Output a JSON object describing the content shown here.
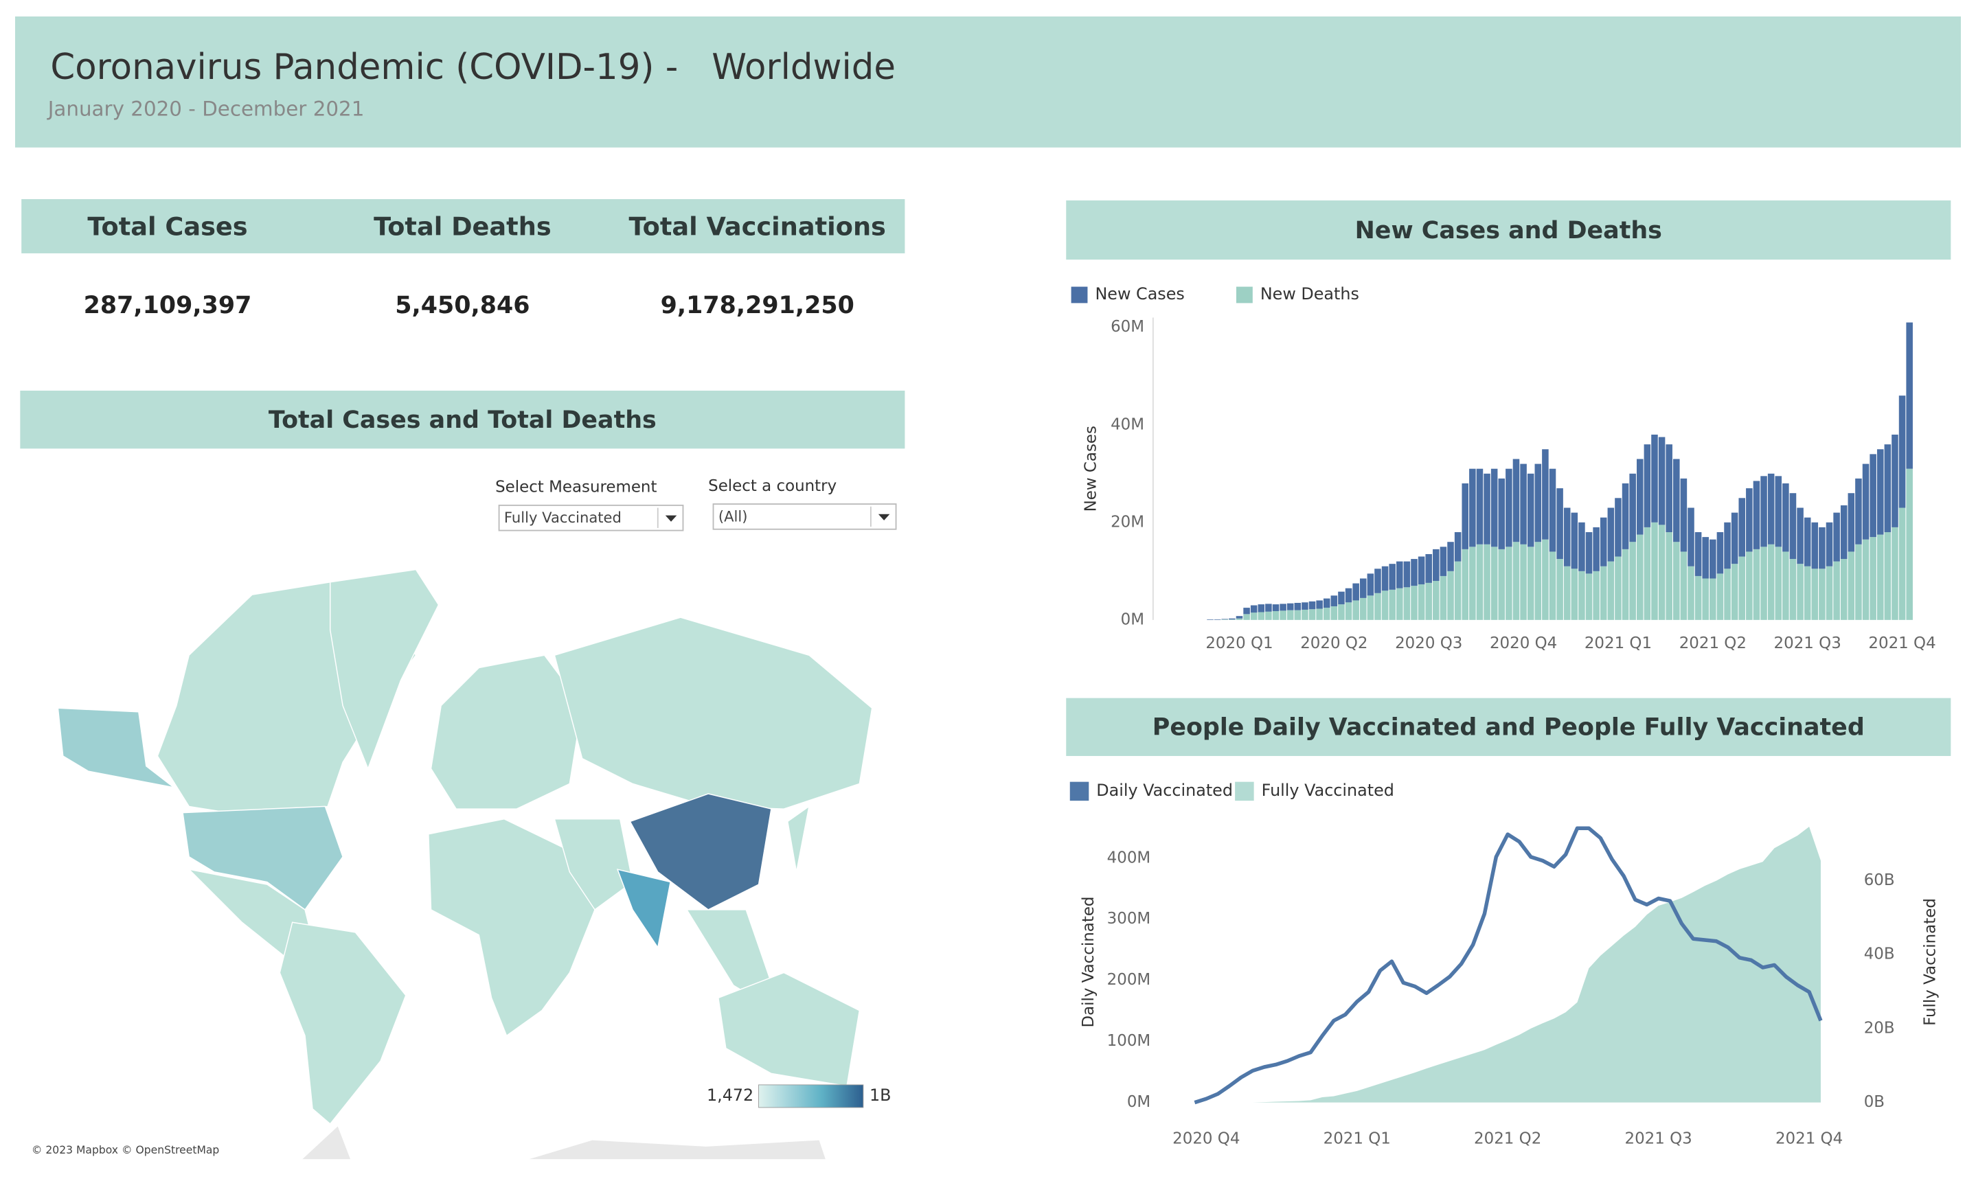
{
  "header": {
    "title": "Coronavirus Pandemic (COVID-19) -   Worldwide",
    "subtitle": "January 2020 - December 2021"
  },
  "kpis": [
    {
      "label": "Total Cases",
      "value": "287,109,397"
    },
    {
      "label": "Total Deaths",
      "value": "5,450,846"
    },
    {
      "label": "Total Vaccinations",
      "value": "9,178,291,250"
    }
  ],
  "map": {
    "title": "Total Cases and Total Deaths",
    "measurement_label": "Select Measurement",
    "measurement_value": "Fully Vaccinated",
    "country_label": "Select a country",
    "country_value": "(All)",
    "legend_min": "1,472",
    "legend_max": "1B",
    "attribution": "© 2023 Mapbox © OpenStreetMap"
  },
  "chart_data": [
    {
      "type": "stacked_bar",
      "title": "New Cases and Deaths",
      "y_label": "New Cases",
      "categories": [
        null,
        null,
        null,
        null,
        null,
        null,
        null,
        "2020 Q1",
        null,
        null,
        null,
        null,
        null,
        null,
        null,
        null,
        null,
        null,
        null,
        null,
        "2020 Q2",
        null,
        null,
        null,
        null,
        null,
        null,
        null,
        null,
        null,
        null,
        null,
        null,
        "2020 Q3",
        null,
        null,
        null,
        null,
        null,
        null,
        null,
        null,
        null,
        null,
        null,
        null,
        "2020 Q4",
        null,
        null,
        null,
        null,
        null,
        null,
        null,
        null,
        null,
        null,
        null,
        null,
        "2021 Q1",
        null,
        null,
        null,
        null,
        null,
        null,
        null,
        null,
        null,
        null,
        null,
        null,
        "2021 Q2",
        null,
        null,
        null,
        null,
        null,
        null,
        null,
        null,
        null,
        null,
        null,
        null,
        "2021 Q3",
        null,
        null,
        null,
        null,
        null,
        null,
        null,
        null,
        null,
        null,
        null,
        null,
        "2021 Q4",
        null
      ],
      "series": [
        {
          "name": "New Cases",
          "color": "#4a6fa5",
          "values": [
            0,
            0,
            0,
            0.1,
            0.1,
            0.1,
            0.2,
            0.5,
            1.3,
            1.5,
            1.6,
            1.6,
            1.4,
            1.4,
            1.4,
            1.5,
            1.5,
            1.6,
            1.7,
            1.9,
            2.2,
            2.6,
            2.9,
            3.5,
            4,
            4.5,
            5,
            5,
            5.3,
            5.5,
            5.3,
            5.5,
            5.7,
            5.9,
            6.5,
            6,
            6,
            6,
            13.5,
            16,
            15.5,
            14.5,
            16,
            14.5,
            16,
            17,
            16.5,
            15,
            16,
            18.5,
            17,
            14.5,
            12,
            11.5,
            10,
            8.5,
            9,
            10,
            11,
            12,
            13.5,
            14,
            15.5,
            17,
            18,
            18,
            18,
            17,
            15,
            12,
            9,
            8.5,
            8,
            8.5,
            9.5,
            10.5,
            12,
            13,
            14,
            14.5,
            14.5,
            14.5,
            14,
            13.5,
            11.5,
            10,
            9.5,
            8.5,
            9,
            10,
            11,
            12,
            13.5,
            15.5,
            17,
            17.5,
            18,
            19,
            23,
            30
          ]
        },
        {
          "name": "New Deaths",
          "color": "#9dd0c4",
          "values": [
            0,
            0,
            0,
            0,
            0,
            0.1,
            0.1,
            0.3,
            1.2,
            1.5,
            1.6,
            1.7,
            1.8,
            1.9,
            2,
            2,
            2.1,
            2.2,
            2.3,
            2.5,
            2.8,
            3.2,
            3.6,
            4,
            4.5,
            5,
            5.5,
            6,
            6.2,
            6.5,
            6.7,
            7,
            7.3,
            7.6,
            8,
            9,
            10,
            12,
            14.5,
            15,
            15.5,
            15.5,
            15,
            14.5,
            15,
            16,
            15.5,
            15,
            16,
            16.5,
            14,
            12.5,
            11,
            10.5,
            10,
            9.5,
            10,
            11,
            12,
            13,
            14.5,
            16,
            17.5,
            19,
            20,
            19.5,
            18,
            16,
            14,
            11,
            9,
            8.5,
            8.5,
            9.5,
            10.5,
            11.5,
            13,
            14,
            14.5,
            15,
            15.5,
            15,
            14,
            12.5,
            11.5,
            11,
            10.5,
            10.5,
            11,
            12,
            12.5,
            14,
            15.5,
            16.5,
            17,
            17.5,
            18,
            19,
            23,
            31
          ]
        }
      ],
      "ylim": [
        0,
        62
      ],
      "yticks": [
        {
          "value": 0,
          "label": "0M"
        },
        {
          "value": 20,
          "label": "20M"
        },
        {
          "value": 40,
          "label": "40M"
        },
        {
          "value": 60,
          "label": "60M"
        }
      ],
      "grid": false
    },
    {
      "type": "line_area",
      "title": "People Daily Vaccinated and People Fully Vaccinated",
      "y_label": "Daily Vaccinated",
      "y2_label": "Fully Vaccinated",
      "categories": [
        null,
        "2020 Q4",
        null,
        null,
        null,
        null,
        null,
        null,
        null,
        null,
        null,
        null,
        null,
        null,
        "2021 Q1",
        null,
        null,
        null,
        null,
        null,
        null,
        null,
        null,
        null,
        null,
        null,
        null,
        "2021 Q2",
        null,
        null,
        null,
        null,
        null,
        null,
        null,
        null,
        null,
        null,
        null,
        null,
        "2021 Q3",
        null,
        null,
        null,
        null,
        null,
        null,
        null,
        null,
        null,
        null,
        null,
        null,
        "2021 Q4",
        null
      ],
      "series": [
        {
          "name": "Daily Vaccinated",
          "color": "#4f77a8",
          "type": "line",
          "values": [
            0,
            6,
            14,
            27,
            41,
            52,
            58,
            62,
            68,
            76,
            82,
            109,
            134,
            144,
            165,
            181,
            216,
            231,
            196,
            190,
            179,
            192,
            206,
            227,
            258,
            309,
            402,
            439,
            427,
            402,
            396,
            386,
            406,
            449,
            449,
            433,
            398,
            371,
            332,
            324,
            334,
            330,
            293,
            268,
            266,
            264,
            254,
            237,
            233,
            221,
            225,
            206,
            192,
            181,
            134
          ]
        },
        {
          "name": "Fully Vaccinated",
          "color": "#b3dbd3",
          "type": "area",
          "axis": "y2",
          "values": [
            0,
            0,
            0,
            0,
            0,
            0,
            0.1,
            0.2,
            0.3,
            0.4,
            0.6,
            1.4,
            1.7,
            2.4,
            3.1,
            4.1,
            5.1,
            6.1,
            7.1,
            8.1,
            9.2,
            10.2,
            11.2,
            12.2,
            13.2,
            14.2,
            15.6,
            16.9,
            18.3,
            20,
            21.4,
            22.7,
            24.4,
            27.1,
            36.3,
            39.7,
            42.4,
            45.1,
            47.5,
            50.8,
            53.2,
            54.2,
            55.3,
            56.9,
            58.6,
            60,
            61.7,
            63.1,
            64.1,
            65.1,
            68.8,
            70.5,
            72.2,
            74.6,
            65.4
          ]
        }
      ],
      "ylim": [
        0,
        460
      ],
      "yticks": [
        {
          "value": 0,
          "label": "0M"
        },
        {
          "value": 100,
          "label": "100M"
        },
        {
          "value": 200,
          "label": "200M"
        },
        {
          "value": 300,
          "label": "300M"
        },
        {
          "value": 400,
          "label": "400M"
        }
      ],
      "y2lim": [
        0,
        76
      ],
      "y2ticks": [
        {
          "value": 0,
          "label": "0B"
        },
        {
          "value": 20,
          "label": "20B"
        },
        {
          "value": 40,
          "label": "40B"
        },
        {
          "value": 60,
          "label": "60B"
        }
      ],
      "grid": false
    }
  ]
}
